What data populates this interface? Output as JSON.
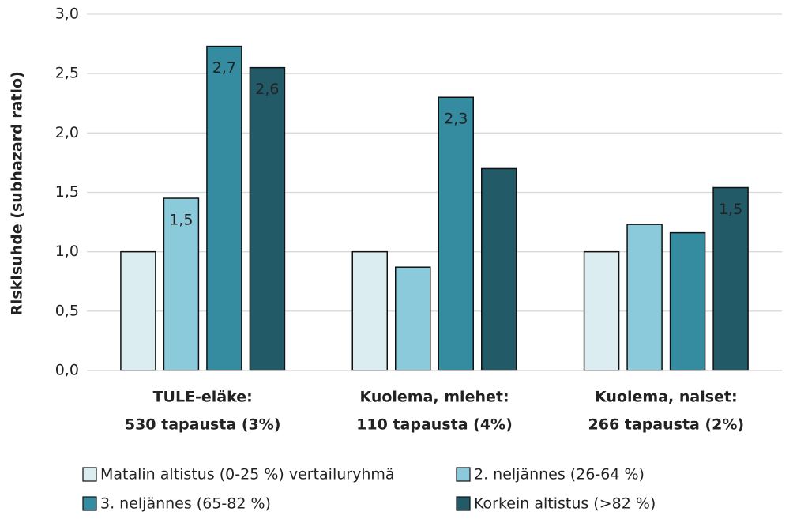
{
  "chart_data": {
    "type": "bar",
    "y_label": "Riskisuhde (subhazard ratio)",
    "categories": [
      [
        "TULE-eläke:",
        "530 tapausta (3%)"
      ],
      [
        "Kuolema, miehet:",
        "110 tapausta (4%)"
      ],
      [
        "Kuolema, naiset:",
        "266 tapausta (2%)"
      ]
    ],
    "series": [
      {
        "name": "Matalin altistus (0-25 %) vertailuryhmä",
        "color": "#dcedf2",
        "values": [
          1.0,
          1.0,
          1.0
        ],
        "value_labels": [
          null,
          null,
          null
        ]
      },
      {
        "name": "2. neljännes (26-64 %)",
        "color": "#8bcadb",
        "values": [
          1.45,
          0.87,
          1.23
        ],
        "value_labels": [
          "1,5",
          null,
          null
        ]
      },
      {
        "name": "3. neljännes (65-82 %)",
        "color": "#358ba0",
        "values": [
          2.73,
          2.3,
          1.16
        ],
        "value_labels": [
          "2,7",
          "2,3",
          null
        ]
      },
      {
        "name": "Korkein altistus (>82 %)",
        "color": "#225a68",
        "values": [
          2.55,
          1.7,
          1.54
        ],
        "value_labels": [
          "2,6",
          null,
          "1,5"
        ]
      }
    ],
    "ylim": [
      0,
      3
    ],
    "yticks": [
      {
        "value": 0,
        "label": "0,0"
      },
      {
        "value": 0.5,
        "label": "0,5"
      },
      {
        "value": 1,
        "label": "1,0"
      },
      {
        "value": 1.5,
        "label": "1,5"
      },
      {
        "value": 2,
        "label": "2,0"
      },
      {
        "value": 2.5,
        "label": "2,5"
      },
      {
        "value": 3,
        "label": "3,0"
      }
    ],
    "grid": true
  }
}
